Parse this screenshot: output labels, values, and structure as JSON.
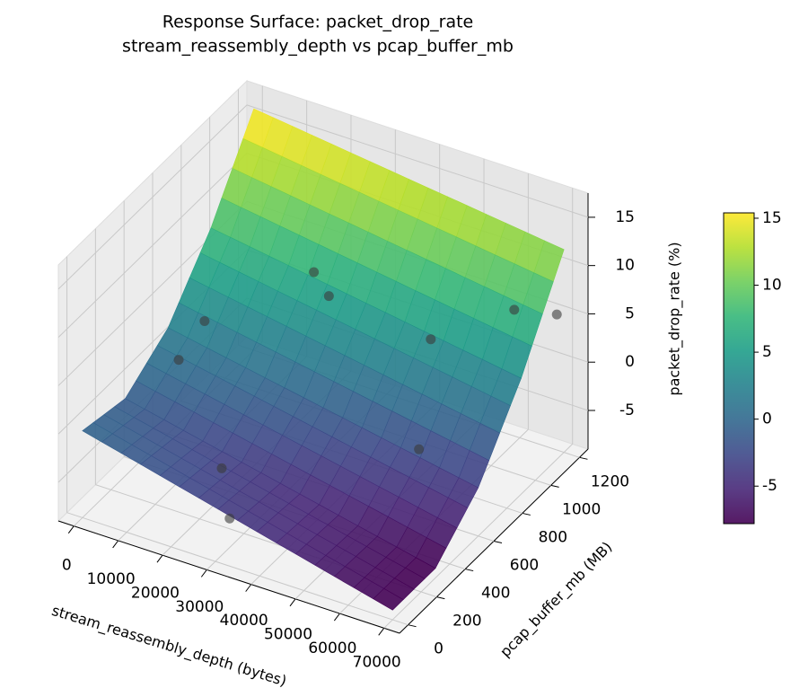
{
  "chart_data": {
    "type": "surface3d",
    "title": "Response Surface: packet_drop_rate",
    "subtitle": "stream_reassembly_depth vs pcap_buffer_mb",
    "xlabel": "stream_reassembly_depth (bytes)",
    "ylabel": "pcap_buffer_mb (MB)",
    "zlabel": "packet_drop_rate (%)",
    "xlim": [
      -3500,
      73500
    ],
    "ylim": [
      -60,
      1260
    ],
    "zlim": [
      -9,
      17.5
    ],
    "xticks": [
      0,
      10000,
      20000,
      30000,
      40000,
      50000,
      60000,
      70000
    ],
    "yticks": [
      0,
      200,
      400,
      600,
      800,
      1000,
      1200
    ],
    "zticks": [
      -5,
      0,
      5,
      10,
      15
    ],
    "colormap": "viridis",
    "surface": {
      "x": [
        0,
        17500,
        35000,
        52500,
        70000
      ],
      "y": [
        0,
        300,
        600,
        900,
        1200
      ],
      "z": [
        [
          0,
          -2,
          -4,
          -6,
          -8
        ],
        [
          -1,
          -2.75,
          -4.5,
          -6.25,
          -8
        ],
        [
          2,
          0.5,
          -1,
          -2.5,
          -4
        ],
        [
          8,
          6.75,
          5.5,
          4.25,
          3
        ],
        [
          16,
          15,
          14,
          13,
          12
        ]
      ]
    },
    "scatter": {
      "x": [
        5000,
        4000,
        20000,
        25000,
        48000,
        62000,
        70000,
        25000,
        55000,
        30000
      ],
      "y": [
        700,
        550,
        1000,
        950,
        950,
        1100,
        1150,
        200,
        650,
        100
      ],
      "z": [
        2,
        0,
        5,
        4,
        3,
        6,
        6,
        -3,
        -3,
        -6
      ],
      "color": "#3a3a3a"
    },
    "colorbar": {
      "lim": [
        -7.8,
        15.4
      ],
      "ticks": [
        -5,
        0,
        5,
        10,
        15
      ]
    },
    "grid": true
  }
}
